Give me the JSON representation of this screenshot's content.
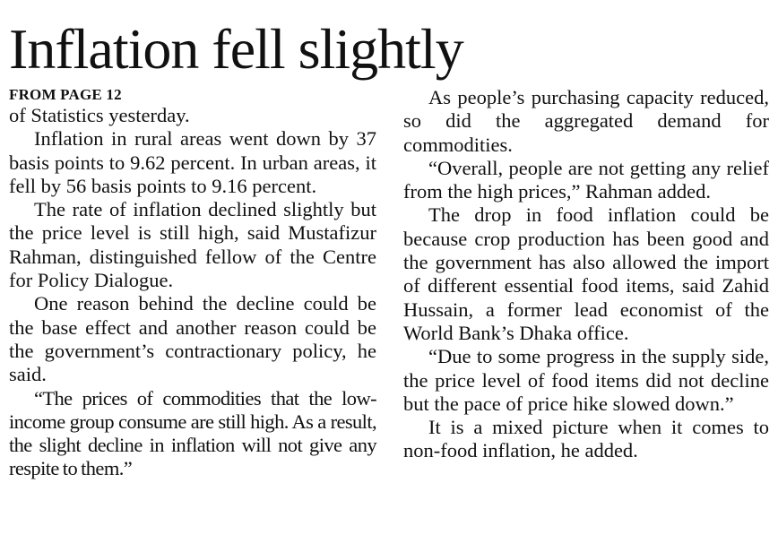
{
  "headline": "Inflation fell slightly",
  "jump_line": "FROM PAGE 12",
  "left_column": [
    "of Statistics yesterday.",
    "Inflation in rural areas went down by 37 basis points to 9.62 percent. In urban areas, it fell by 56 basis points to 9.16 percent.",
    "The rate of inflation declined slightly but the price level is still high, said Mustafizur Rahman, distinguished fellow of the Centre for Policy Dialogue.",
    "One reason behind the decline could be the base effect and another reason could be the government’s contractionary policy, he said.",
    "“The prices of commodities that the low-income group consume are still high. As a result, the slight decline in inflation will not give any respite to them.”"
  ],
  "right_column": [
    "As people’s purchasing capacity reduced, so did the aggregated demand for commodities.",
    "“Overall, people are not getting any relief from the high prices,” Rahman added.",
    "The drop in food inflation could be because crop production has been good and the government has also allowed the import of different essential food items, said Zahid Hussain, a former lead economist of the World Bank’s Dhaka office.",
    "“Due to some progress in the supply side, the price level of food items did not decline but the pace of price hike slowed down.”",
    "It is a mixed picture when it comes to non-food inflation, he added."
  ]
}
